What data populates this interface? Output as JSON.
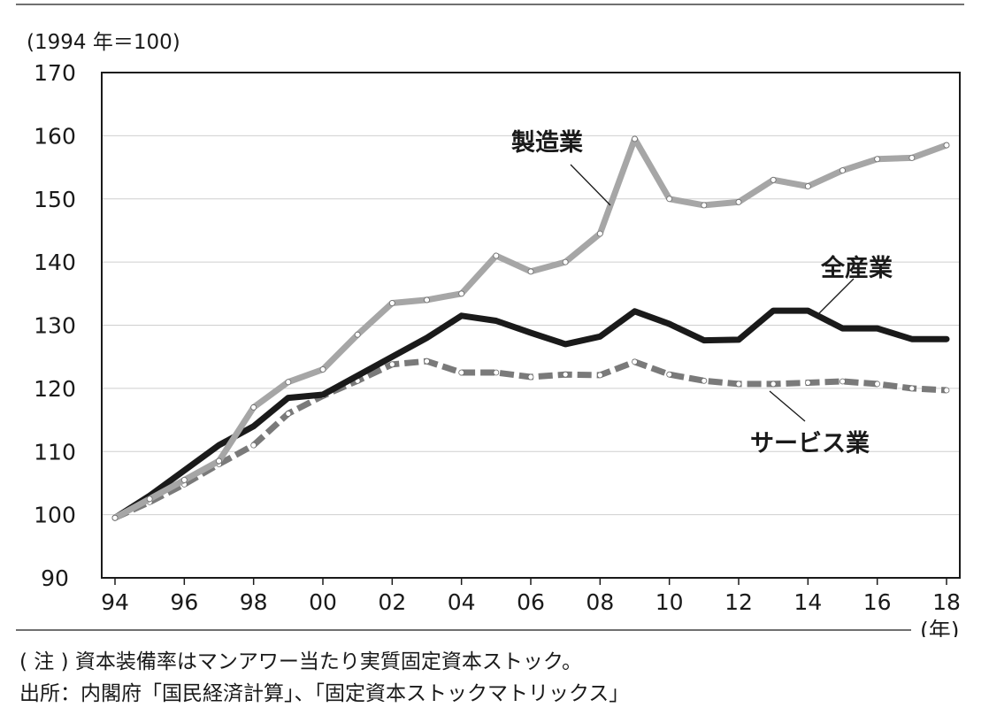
{
  "chart_data": {
    "type": "line",
    "ylabel": "(1994 年＝100)",
    "xunit": "(年)",
    "ylim": [
      90,
      170
    ],
    "yticks": [
      90,
      100,
      110,
      120,
      130,
      140,
      150,
      160,
      170
    ],
    "x": [
      1994,
      1995,
      1996,
      1997,
      1998,
      1999,
      2000,
      2001,
      2002,
      2003,
      2004,
      2005,
      2006,
      2007,
      2008,
      2009,
      2010,
      2011,
      2012,
      2013,
      2014,
      2015,
      2016,
      2017,
      2018
    ],
    "xtick_labels": [
      "94",
      "96",
      "98",
      "00",
      "02",
      "04",
      "06",
      "08",
      "10",
      "12",
      "14",
      "16",
      "18"
    ],
    "xtick_years": [
      1994,
      1996,
      1998,
      2000,
      2002,
      2004,
      2006,
      2008,
      2010,
      2012,
      2014,
      2016,
      2018
    ],
    "grid": true,
    "series": [
      {
        "name": "製造業",
        "color": "#a6a6a6",
        "style": "solid-dotted",
        "values": [
          99.5,
          102.5,
          105.5,
          108.5,
          117.0,
          121.0,
          123.0,
          128.5,
          133.5,
          134.0,
          135.0,
          141.0,
          138.5,
          140.0,
          144.5,
          159.5,
          150.0,
          149.0,
          149.5,
          153.0,
          152.0,
          154.5,
          156.3,
          156.5,
          158.5
        ]
      },
      {
        "name": "全産業",
        "color": "#1a1a1a",
        "style": "solid",
        "values": [
          99.5,
          103.0,
          107.0,
          111.0,
          114.0,
          118.5,
          119.0,
          122.0,
          125.0,
          128.0,
          131.5,
          130.7,
          128.8,
          127.0,
          128.2,
          132.2,
          130.2,
          127.6,
          127.7,
          132.3,
          132.3,
          129.5,
          129.5,
          127.8,
          127.8
        ]
      },
      {
        "name": "サービス業",
        "color": "#7a7a7a",
        "style": "dashed-dotted",
        "values": [
          99.5,
          102.0,
          104.8,
          108.0,
          111.0,
          116.0,
          118.8,
          121.2,
          123.8,
          124.3,
          122.5,
          122.5,
          121.8,
          122.2,
          122.1,
          124.2,
          122.2,
          121.2,
          120.7,
          120.7,
          120.9,
          121.1,
          120.7,
          120.0,
          119.7
        ]
      }
    ]
  },
  "notes": {
    "line1": "( 注 ) 資本装備率はマンアワー当たり実質固定資本ストック。",
    "line2": "出所：内閣府「国民経済計算」、「固定資本ストックマトリックス」"
  }
}
